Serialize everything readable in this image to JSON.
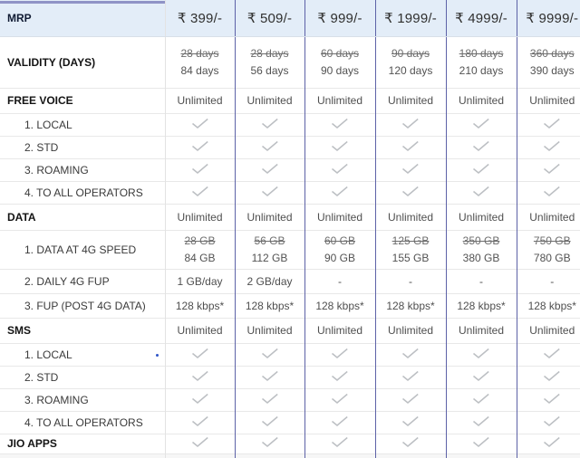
{
  "table": {
    "header": {
      "label": "MRP",
      "prices": [
        "₹ 399/-",
        "₹ 509/-",
        "₹ 999/-",
        "₹ 1999/-",
        "₹ 4999/-",
        "₹ 9999/-"
      ]
    },
    "rows": [
      {
        "type": "strike",
        "section": true,
        "label": "VALIDITY (DAYS)",
        "cells": [
          [
            "28 days",
            "84 days"
          ],
          [
            "28 days",
            "56 days"
          ],
          [
            "60 days",
            "90 days"
          ],
          [
            "90 days",
            "120 days"
          ],
          [
            "180 days",
            "210 days"
          ],
          [
            "360 days",
            "390 days"
          ]
        ]
      },
      {
        "type": "text",
        "section": true,
        "label": "FREE VOICE",
        "cells": [
          "Unlimited",
          "Unlimited",
          "Unlimited",
          "Unlimited",
          "Unlimited",
          "Unlimited"
        ]
      },
      {
        "type": "check",
        "section": false,
        "label": "1. LOCAL"
      },
      {
        "type": "check",
        "section": false,
        "label": "2. STD"
      },
      {
        "type": "check",
        "section": false,
        "label": "3. ROAMING"
      },
      {
        "type": "check",
        "section": false,
        "label": "4. TO ALL OPERATORS"
      },
      {
        "type": "text",
        "section": true,
        "label": "DATA",
        "cells": [
          "Unlimited",
          "Unlimited",
          "Unlimited",
          "Unlimited",
          "Unlimited",
          "Unlimited"
        ]
      },
      {
        "type": "strike",
        "section": false,
        "label": "1. DATA AT 4G SPEED",
        "cells": [
          [
            "28 GB",
            "84 GB"
          ],
          [
            "56 GB",
            "112 GB"
          ],
          [
            "60 GB",
            "90 GB"
          ],
          [
            "125 GB",
            "155 GB"
          ],
          [
            "350 GB",
            "380 GB"
          ],
          [
            "750 GB",
            "780 GB"
          ]
        ]
      },
      {
        "type": "text",
        "section": false,
        "label": "2. DAILY 4G FUP",
        "cells": [
          "1 GB/day",
          "2 GB/day",
          "-",
          "-",
          "-",
          "-"
        ]
      },
      {
        "type": "text",
        "section": false,
        "label": "3. FUP (POST 4G DATA)",
        "cells": [
          "128 kbps*",
          "128 kbps*",
          "128 kbps*",
          "128 kbps*",
          "128 kbps*",
          "128 kbps*"
        ]
      },
      {
        "type": "text",
        "section": true,
        "label": "SMS",
        "cells": [
          "Unlimited",
          "Unlimited",
          "Unlimited",
          "Unlimited",
          "Unlimited",
          "Unlimited"
        ]
      },
      {
        "type": "check",
        "section": false,
        "label": "1. LOCAL"
      },
      {
        "type": "check",
        "section": false,
        "label": "2. STD"
      },
      {
        "type": "check",
        "section": false,
        "label": "3. ROAMING"
      },
      {
        "type": "check",
        "section": false,
        "label": "4. TO ALL OPERATORS"
      },
      {
        "type": "check",
        "section": true,
        "label": "JIO APPS"
      }
    ]
  },
  "colors": {
    "header_bg": "#e3edf8",
    "column_divider": "#5d62a7",
    "top_accent": "#8f93c6",
    "checkmark": "#bcbfc3",
    "row_divider": "#e8e8e8",
    "strike_text": "#6d6d6d",
    "value_text": "#4f4f4f"
  }
}
